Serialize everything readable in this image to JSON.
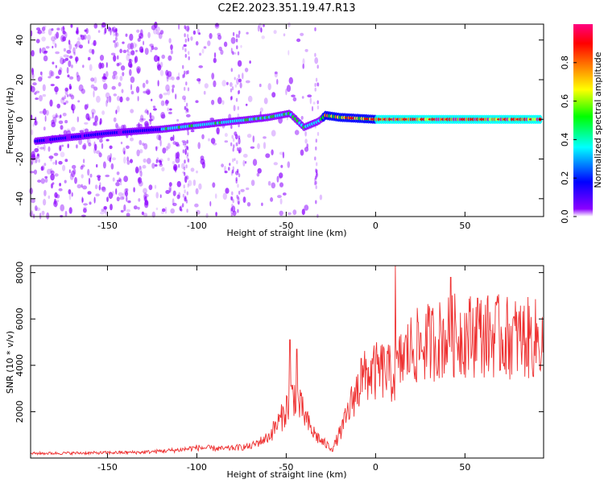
{
  "title": "C2E2.2023.351.19.47.R13",
  "chart_data": [
    {
      "type": "heatmap",
      "xlabel": "Height of straight line (km)",
      "ylabel": "Frequency (Hz)",
      "xlim": [
        -193,
        94
      ],
      "ylim": [
        -49,
        48
      ],
      "x_ticks": [
        -150,
        -100,
        -50,
        0,
        50
      ],
      "x_tick_labels": [
        "-150",
        "-100",
        "-50",
        "0",
        "50"
      ],
      "y_ticks": [
        -40,
        -20,
        0,
        20,
        40
      ],
      "y_tick_labels": [
        "-40",
        "-20",
        "0",
        "20",
        "40"
      ],
      "colorbar": {
        "label": "Normalized spectral amplitude",
        "range": [
          0,
          1
        ],
        "ticks": [
          0.0,
          0.2,
          0.4,
          0.6,
          0.8
        ],
        "tick_labels": [
          "0.0",
          "0.2",
          "0.4",
          "0.6",
          "0.8"
        ],
        "colors": [
          "#ffffff",
          "#8b00ff",
          "#0000ff",
          "#00ffff",
          "#00ff00",
          "#ffff00",
          "#ff8000",
          "#ff0000",
          "#ff0080"
        ]
      },
      "ridge": [
        {
          "x": -190,
          "y": -11
        },
        {
          "x": -150,
          "y": -7
        },
        {
          "x": -120,
          "y": -5
        },
        {
          "x": -100,
          "y": -3
        },
        {
          "x": -80,
          "y": -1
        },
        {
          "x": -60,
          "y": 1
        },
        {
          "x": -48,
          "y": 3
        },
        {
          "x": -40,
          "y": -4
        },
        {
          "x": -32,
          "y": -1
        },
        {
          "x": -28,
          "y": 2
        },
        {
          "x": -20,
          "y": 1
        },
        {
          "x": 0,
          "y": 0
        },
        {
          "x": 30,
          "y": 0
        },
        {
          "x": 60,
          "y": 0
        },
        {
          "x": 94,
          "y": 0
        }
      ]
    },
    {
      "type": "line",
      "xlabel": "Height of straight line (km)",
      "ylabel": "SNR (10 * v/v)",
      "xlim": [
        -193,
        94
      ],
      "ylim": [
        0,
        8300
      ],
      "x_ticks": [
        -150,
        -100,
        -50,
        0,
        50
      ],
      "x_tick_labels": [
        "-150",
        "-100",
        "-50",
        "0",
        "50"
      ],
      "y_ticks": [
        2000,
        4000,
        6000,
        8000
      ],
      "y_tick_labels": [
        "2000",
        "4000",
        "6000",
        "8000"
      ],
      "color": "#ee3030",
      "envelope": [
        {
          "x": -193,
          "y": 200
        },
        {
          "x": -160,
          "y": 220
        },
        {
          "x": -130,
          "y": 250
        },
        {
          "x": -110,
          "y": 350
        },
        {
          "x": -100,
          "y": 450
        },
        {
          "x": -85,
          "y": 400
        },
        {
          "x": -70,
          "y": 500
        },
        {
          "x": -60,
          "y": 900
        },
        {
          "x": -52,
          "y": 1800
        },
        {
          "x": -46,
          "y": 2800
        },
        {
          "x": -42,
          "y": 2200
        },
        {
          "x": -36,
          "y": 1200
        },
        {
          "x": -30,
          "y": 700
        },
        {
          "x": -24,
          "y": 400
        },
        {
          "x": -18,
          "y": 1400
        },
        {
          "x": -12,
          "y": 2700
        },
        {
          "x": -5,
          "y": 3600
        },
        {
          "x": 5,
          "y": 3800
        },
        {
          "x": 10,
          "y": 3500
        },
        {
          "x": 15,
          "y": 4300
        },
        {
          "x": 20,
          "y": 4700
        },
        {
          "x": 30,
          "y": 5000
        },
        {
          "x": 45,
          "y": 5300
        },
        {
          "x": 60,
          "y": 5300
        },
        {
          "x": 75,
          "y": 5200
        },
        {
          "x": 94,
          "y": 5100
        }
      ],
      "spikes": [
        {
          "x": -48,
          "y": 5100
        },
        {
          "x": -44,
          "y": 4700
        },
        {
          "x": -8,
          "y": 4300
        },
        {
          "x": 11,
          "y": 8300
        },
        {
          "x": 42,
          "y": 7800
        },
        {
          "x": 57,
          "y": 6900
        },
        {
          "x": 67,
          "y": 6700
        }
      ]
    }
  ]
}
